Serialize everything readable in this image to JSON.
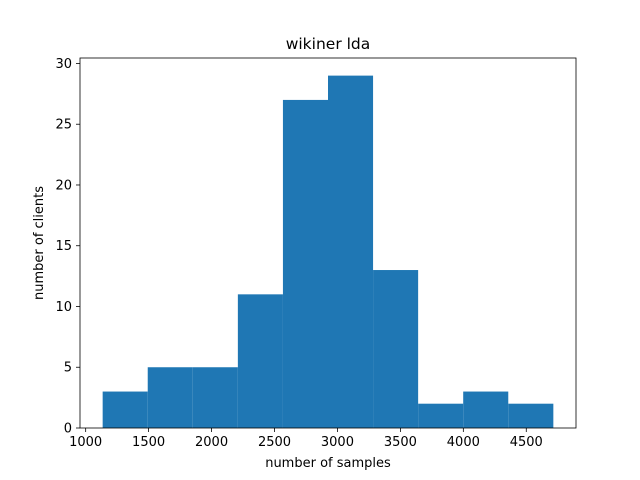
{
  "chart_data": {
    "type": "bar",
    "title": "wikiner lda",
    "xlabel": "number of samples",
    "ylabel": "number of clients",
    "bin_edges": [
      1135,
      1493,
      1851,
      2209,
      2567,
      2925,
      3283,
      3641,
      3999,
      4357,
      4715
    ],
    "values": [
      3,
      5,
      5,
      11,
      27,
      29,
      13,
      2,
      3,
      2
    ],
    "xlim": [
      955,
      4895
    ],
    "ylim": [
      0,
      30.45
    ],
    "xticks": [
      1000,
      1500,
      2000,
      2500,
      3000,
      3500,
      4000,
      4500
    ],
    "yticks": [
      0,
      5,
      10,
      15,
      20,
      25,
      30
    ],
    "bar_color": "#1f77b4",
    "grid": false,
    "legend": "none"
  }
}
